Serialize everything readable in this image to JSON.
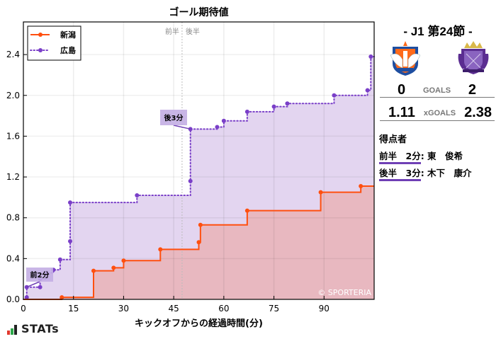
{
  "chart_data": {
    "type": "line",
    "subtype": "step-cumulative-area",
    "title": "ゴール期待値",
    "xlabel": "キックオフからの経過時間(分)",
    "ylabel": "",
    "xlim": [
      0,
      105
    ],
    "ylim": [
      0,
      2.72
    ],
    "x_ticks": [
      0,
      15,
      30,
      45,
      60,
      75,
      90
    ],
    "y_ticks": [
      0.0,
      0.4,
      0.8,
      1.2,
      1.6,
      2.0,
      2.4
    ],
    "x_tick_labels": [
      "0",
      "15",
      "30",
      "45",
      "60",
      "75",
      "90"
    ],
    "y_tick_labels": [
      "0.0",
      "0.4",
      "0.8",
      "1.2",
      "1.6",
      "2.0",
      "2.4"
    ],
    "grid": true,
    "legend_position": "upper-left",
    "halftime_marker": {
      "x": 47.5,
      "left_label": "前半",
      "right_label": "後半"
    },
    "series": [
      {
        "name": "新潟",
        "color": "#ff4f0f",
        "fill": "#e8b8c0",
        "line_style": "solid",
        "points": [
          [
            0,
            0
          ],
          [
            11.5,
            0.02
          ],
          [
            21,
            0.28
          ],
          [
            27,
            0.31
          ],
          [
            30,
            0.38
          ],
          [
            41,
            0.49
          ],
          [
            52.5,
            0.56
          ],
          [
            53,
            0.73
          ],
          [
            67,
            0.87
          ],
          [
            89,
            1.05
          ],
          [
            101,
            1.11
          ]
        ],
        "final": 1.11
      },
      {
        "name": "広島",
        "color": "#7a3fc8",
        "fill": "#e3d5f0",
        "line_style": "dotted",
        "points": [
          [
            0,
            0
          ],
          [
            1,
            0.02
          ],
          [
            1,
            0.12
          ],
          [
            5,
            0.12
          ],
          [
            5,
            0.2
          ],
          [
            7,
            0.26
          ],
          [
            9,
            0.29
          ],
          [
            11,
            0.39
          ],
          [
            14,
            0.57
          ],
          [
            14,
            0.95
          ],
          [
            34,
            1.02
          ],
          [
            50,
            1.16
          ],
          [
            50,
            1.67
          ],
          [
            58,
            1.69
          ],
          [
            60,
            1.75
          ],
          [
            67,
            1.84
          ],
          [
            75,
            1.89
          ],
          [
            79,
            1.92
          ],
          [
            93,
            2.0
          ],
          [
            103,
            2.05
          ],
          [
            104,
            2.38
          ]
        ],
        "final": 2.38
      }
    ],
    "annotations": [
      {
        "text": "前2分",
        "x": 1,
        "y": 0.12,
        "team": "広島"
      },
      {
        "text": "後3分",
        "x": 50,
        "y": 1.67,
        "team": "広島"
      }
    ],
    "watermark": "© SPORTERIA"
  },
  "match": {
    "round": "- J1 第24節 -",
    "home": {
      "name": "新潟",
      "goals": "0",
      "xg": "1.11",
      "color": "#ff4f0f"
    },
    "away": {
      "name": "広島",
      "goals": "2",
      "xg": "2.38",
      "color": "#6f3fb5"
    },
    "goals_label": "GOALS",
    "xgoals_label": "xGOALS"
  },
  "scorers": {
    "title": "得点者",
    "items": [
      {
        "time": "前半　2分",
        "name": ": 東　俊希"
      },
      {
        "time": "後半　3分",
        "name": ": 木下　康介"
      }
    ]
  },
  "branding": {
    "stats_logo": "STATs"
  }
}
